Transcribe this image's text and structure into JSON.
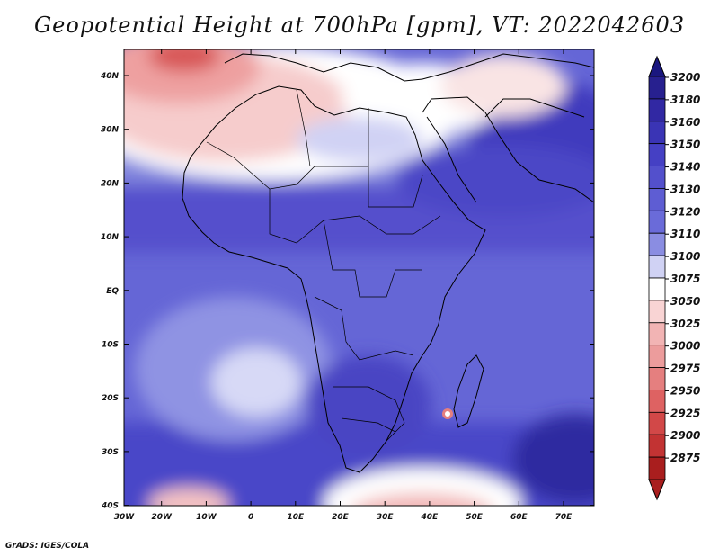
{
  "title": "Geopotential Height at 700hPa [gpm], VT: 2022042603",
  "footer": "GrADS: IGES/COLA",
  "map": {
    "lon_ticks": [
      "30W",
      "20W",
      "10W",
      "0",
      "10E",
      "20E",
      "30E",
      "40E",
      "50E",
      "60E",
      "70E"
    ],
    "lat_ticks": [
      "40N",
      "30N",
      "20N",
      "10N",
      "EQ",
      "10S",
      "20S",
      "30S",
      "40S"
    ]
  },
  "colorbar": {
    "levels": [
      "3200",
      "3180",
      "3160",
      "3150",
      "3140",
      "3130",
      "3120",
      "3110",
      "3100",
      "3075",
      "3050",
      "3025",
      "3000",
      "2975",
      "2950",
      "2925",
      "2900",
      "2875"
    ],
    "colors": [
      "#27208f",
      "#3128a3",
      "#3a34b5",
      "#4540c4",
      "#5350cc",
      "#5e5dd3",
      "#6a6bd9",
      "#8a8de2",
      "#d0d2f4",
      "#ffffff",
      "#f9d4d4",
      "#f2b4b4",
      "#ec9c9c",
      "#e57f7f",
      "#de6262",
      "#d24848",
      "#c23333",
      "#a91e1e"
    ],
    "top_color": "#1a177f",
    "bottom_color": "#a91e1e"
  }
}
